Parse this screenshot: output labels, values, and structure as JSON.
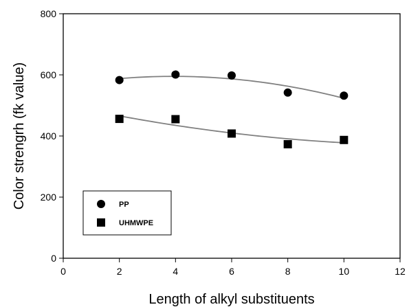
{
  "chart_data": {
    "type": "scatter",
    "xlabel": "Length of alkyl substituents",
    "ylabel": "Color strengrh (fk value)",
    "xlim": [
      0,
      12
    ],
    "ylim": [
      0,
      800
    ],
    "xticks": [
      0,
      2,
      4,
      6,
      8,
      10,
      12
    ],
    "yticks": [
      0,
      200,
      400,
      600,
      800
    ],
    "grid": false,
    "legend_position": "bottom-left",
    "series": [
      {
        "name": "PP",
        "marker": "circle",
        "color": "#000000",
        "x": [
          2,
          4,
          6,
          8,
          10
        ],
        "y": [
          583,
          601,
          598,
          542,
          532
        ],
        "fit_curve": {
          "type": "quadratic",
          "color": "#808080"
        }
      },
      {
        "name": "UHMWPE",
        "marker": "square",
        "color": "#000000",
        "x": [
          2,
          4,
          6,
          8,
          10
        ],
        "y": [
          456,
          455,
          408,
          373,
          387
        ],
        "fit_curve": {
          "type": "quadratic",
          "color": "#808080"
        }
      }
    ]
  }
}
